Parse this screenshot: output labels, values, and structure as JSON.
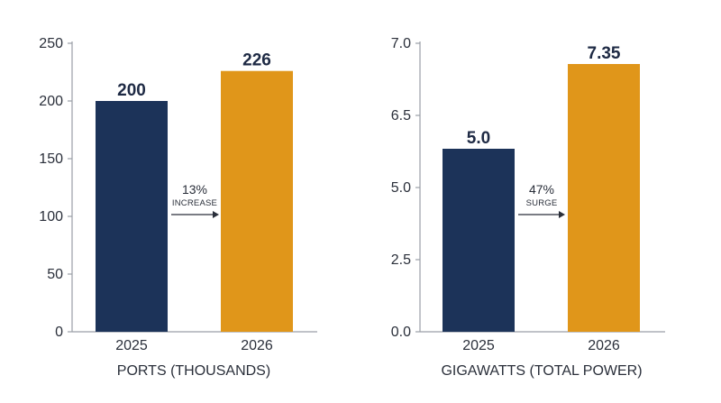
{
  "chart_data": [
    {
      "type": "bar",
      "title": "PORTS (THOUSANDS)",
      "categories": [
        "2025",
        "2026"
      ],
      "values": [
        200,
        226
      ],
      "value_labels": [
        "200",
        "226"
      ],
      "y_ticks": [
        "0",
        "50",
        "100",
        "150",
        "200",
        "250"
      ],
      "y_tick_values": [
        0,
        50,
        100,
        150,
        200,
        250
      ],
      "ylim": [
        0,
        250
      ],
      "grid": false,
      "colors": [
        "#1c3359",
        "#e0961a"
      ],
      "annotation": {
        "value": "13%",
        "label": "INCREASE"
      }
    },
    {
      "type": "bar",
      "title": "GIGAWATTS (TOTAL POWER)",
      "categories": [
        "2025",
        "2026"
      ],
      "values": [
        5.0,
        7.35
      ],
      "value_labels": [
        "5.0",
        "7.35"
      ],
      "y_ticks": [
        "0.0",
        "2.5",
        "5.0",
        "6.5",
        "7.0"
      ],
      "y_tick_values": [
        0,
        2.5,
        5.0,
        6.5,
        7.0
      ],
      "scale_note": "tick labels unevenly spaced; bars drawn to axis positions as shown",
      "grid": false,
      "colors": [
        "#1c3359",
        "#e0961a"
      ],
      "annotation": {
        "value": "47%",
        "label": "SURGE"
      }
    }
  ]
}
